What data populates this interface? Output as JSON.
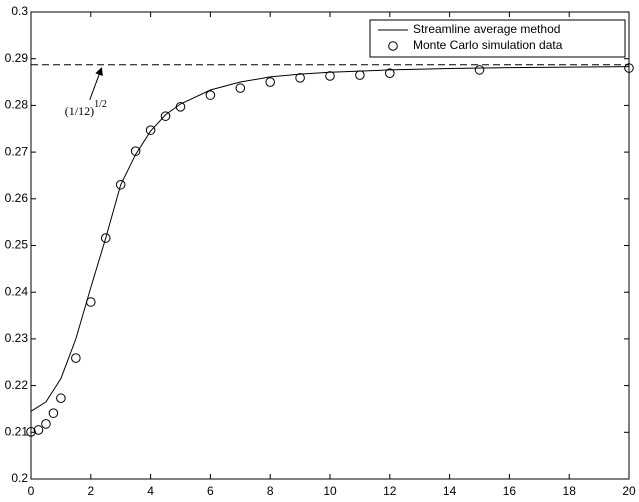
{
  "chart_data": {
    "type": "line",
    "xlim": [
      0,
      20
    ],
    "xticks": [
      0,
      2,
      4,
      6,
      8,
      10,
      12,
      14,
      16,
      18,
      20
    ],
    "ylim": [
      0.2,
      0.3
    ],
    "yticks": [
      0.2,
      0.21,
      0.22,
      0.23,
      0.24,
      0.25,
      0.26,
      0.27,
      0.28,
      0.29,
      0.3
    ],
    "legend": "upper right",
    "reference_line": {
      "value": 0.2887,
      "style": "dashed",
      "color": "#000000"
    },
    "annotation": {
      "text": "(1/12)",
      "superscript": "1/2",
      "x": 2.3,
      "y": 0.2812
    },
    "series": [
      {
        "name": "Streamline average method",
        "color": "#000000",
        "style": "line",
        "x": [
          0,
          0.5,
          1,
          1.5,
          2,
          2.5,
          3,
          3.5,
          4,
          4.5,
          5,
          6,
          7,
          8,
          9,
          10,
          12,
          14,
          16,
          18,
          20
        ],
        "values": [
          0.2145,
          0.2165,
          0.2215,
          0.23,
          0.241,
          0.2516,
          0.263,
          0.2695,
          0.2745,
          0.278,
          0.2803,
          0.2833,
          0.285,
          0.2861,
          0.2867,
          0.2871,
          0.2876,
          0.2879,
          0.2881,
          0.2882,
          0.2883
        ]
      },
      {
        "name": "Monte Carlo simulation data",
        "color": "#000000",
        "style": "marker",
        "x": [
          0,
          0.25,
          0.5,
          0.75,
          1,
          1.5,
          2,
          2.5,
          3,
          3.5,
          4,
          4.5,
          5,
          6,
          7,
          8,
          9,
          10,
          11,
          12,
          15,
          20
        ],
        "values": [
          0.2101,
          0.2105,
          0.2118,
          0.2141,
          0.2173,
          0.2259,
          0.2379,
          0.2516,
          0.263,
          0.2702,
          0.2747,
          0.2777,
          0.2797,
          0.2822,
          0.2837,
          0.285,
          0.2859,
          0.2863,
          0.2865,
          0.2869,
          0.2876,
          0.288
        ]
      }
    ]
  }
}
